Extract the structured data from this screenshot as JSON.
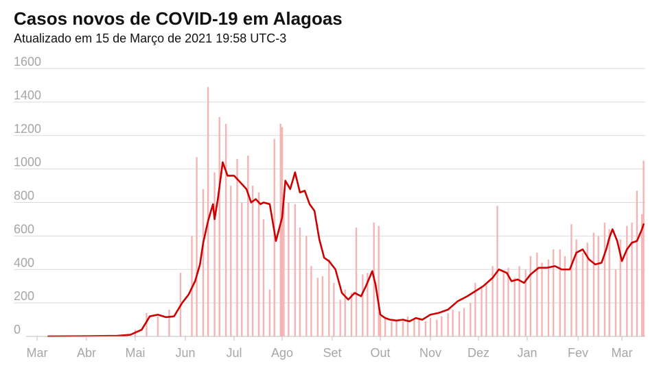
{
  "chart_data": {
    "type": "bar",
    "title": "Casos novos de COVID-19 em Alagoas",
    "subtitle": "Atualizado em 15 de Março de 2021 19:58 UTC-3",
    "xlabel": "",
    "ylabel": "",
    "ylim": [
      0,
      1600
    ],
    "y_ticks": [
      0,
      200,
      400,
      600,
      800,
      1000,
      1200,
      1400,
      1600
    ],
    "x_ticks": [
      "Mar",
      "Abr",
      "Mai",
      "Jun",
      "Jul",
      "Ago",
      "Set",
      "Out",
      "Nov",
      "Dez",
      "Jan",
      "Fev",
      "Mar"
    ],
    "grid": true,
    "bar_color": "#f4b4b4",
    "line_color": "#cc0000",
    "series": [
      {
        "type": "bar",
        "x": [
          "2020-03-08",
          "2020-03-15",
          "2020-03-22",
          "2020-03-29",
          "2020-04-05",
          "2020-04-12",
          "2020-04-19",
          "2020-04-26",
          "2020-05-01",
          "2020-05-08",
          "2020-05-15",
          "2020-05-22",
          "2020-05-29",
          "2020-06-05",
          "2020-06-08",
          "2020-06-12",
          "2020-06-15",
          "2020-06-19",
          "2020-06-22",
          "2020-06-26",
          "2020-06-29",
          "2020-07-03",
          "2020-07-06",
          "2020-07-10",
          "2020-07-13",
          "2020-07-17",
          "2020-07-20",
          "2020-07-24",
          "2020-07-27",
          "2020-07-31",
          "2020-08-01",
          "2020-08-02",
          "2020-08-05",
          "2020-08-09",
          "2020-08-12",
          "2020-08-16",
          "2020-08-19",
          "2020-08-23",
          "2020-08-26",
          "2020-08-30",
          "2020-09-02",
          "2020-09-06",
          "2020-09-09",
          "2020-09-13",
          "2020-09-16",
          "2020-09-20",
          "2020-09-23",
          "2020-09-27",
          "2020-09-30",
          "2020-10-01",
          "2020-10-04",
          "2020-10-08",
          "2020-10-11",
          "2020-10-15",
          "2020-10-18",
          "2020-10-22",
          "2020-10-25",
          "2020-10-29",
          "2020-11-01",
          "2020-11-05",
          "2020-11-08",
          "2020-11-12",
          "2020-11-15",
          "2020-11-19",
          "2020-11-22",
          "2020-11-26",
          "2020-11-29",
          "2020-12-03",
          "2020-12-06",
          "2020-12-10",
          "2020-12-13",
          "2020-12-17",
          "2020-12-20",
          "2020-12-24",
          "2020-12-27",
          "2020-12-31",
          "2021-01-03",
          "2021-01-07",
          "2021-01-10",
          "2021-01-14",
          "2021-01-17",
          "2021-01-21",
          "2021-01-24",
          "2021-01-28",
          "2021-01-31",
          "2021-02-04",
          "2021-02-07",
          "2021-02-11",
          "2021-02-14",
          "2021-02-18",
          "2021-02-21",
          "2021-02-25",
          "2021-02-28",
          "2021-03-04",
          "2021-03-07",
          "2021-03-10",
          "2021-03-13",
          "2021-03-14"
        ],
        "values": [
          1,
          2,
          3,
          4,
          5,
          6,
          8,
          10,
          40,
          140,
          120,
          160,
          380,
          600,
          1070,
          880,
          1490,
          980,
          1310,
          1270,
          900,
          1060,
          800,
          1080,
          900,
          860,
          700,
          280,
          1180,
          1270,
          1250,
          850,
          800,
          790,
          650,
          600,
          420,
          350,
          360,
          460,
          320,
          220,
          280,
          260,
          650,
          370,
          380,
          680,
          660,
          120,
          110,
          90,
          100,
          90,
          120,
          100,
          100,
          90,
          110,
          100,
          120,
          140,
          160,
          150,
          170,
          200,
          320,
          300,
          310,
          420,
          780,
          380,
          410,
          350,
          420,
          400,
          480,
          500,
          440,
          460,
          520,
          520,
          480,
          670,
          580,
          500,
          560,
          620,
          600,
          680,
          640,
          400,
          580,
          660,
          680,
          870,
          730,
          1050
        ]
      },
      {
        "type": "line",
        "name": "",
        "x": [
          "2020-03-08",
          "2020-04-01",
          "2020-04-20",
          "2020-04-28",
          "2020-05-05",
          "2020-05-10",
          "2020-05-15",
          "2020-05-20",
          "2020-05-25",
          "2020-05-30",
          "2020-06-03",
          "2020-06-07",
          "2020-06-10",
          "2020-06-12",
          "2020-06-15",
          "2020-06-18",
          "2020-06-19",
          "2020-06-21",
          "2020-06-24",
          "2020-06-27",
          "2020-07-01",
          "2020-07-05",
          "2020-07-09",
          "2020-07-12",
          "2020-07-15",
          "2020-07-18",
          "2020-07-20",
          "2020-07-24",
          "2020-07-28",
          "2020-08-01",
          "2020-08-03",
          "2020-08-06",
          "2020-08-09",
          "2020-08-12",
          "2020-08-15",
          "2020-08-18",
          "2020-08-21",
          "2020-08-24",
          "2020-08-27",
          "2020-08-30",
          "2020-09-03",
          "2020-09-07",
          "2020-09-11",
          "2020-09-15",
          "2020-09-19",
          "2020-09-22",
          "2020-09-26",
          "2020-09-28",
          "2020-10-01",
          "2020-10-04",
          "2020-10-07",
          "2020-10-11",
          "2020-10-15",
          "2020-10-19",
          "2020-10-23",
          "2020-10-27",
          "2020-11-01",
          "2020-11-06",
          "2020-11-12",
          "2020-11-18",
          "2020-11-24",
          "2020-11-29",
          "2020-12-04",
          "2020-12-10",
          "2020-12-14",
          "2020-12-19",
          "2020-12-22",
          "2020-12-26",
          "2020-12-30",
          "2021-01-03",
          "2021-01-08",
          "2021-01-13",
          "2021-01-18",
          "2021-01-22",
          "2021-01-27",
          "2021-01-31",
          "2021-02-04",
          "2021-02-08",
          "2021-02-12",
          "2021-02-16",
          "2021-02-19",
          "2021-02-21",
          "2021-02-23",
          "2021-02-26",
          "2021-03-01",
          "2021-03-04",
          "2021-03-07",
          "2021-03-10",
          "2021-03-13",
          "2021-03-14"
        ],
        "values": [
          1,
          2,
          4,
          10,
          40,
          120,
          130,
          115,
          120,
          200,
          250,
          330,
          430,
          560,
          690,
          790,
          700,
          820,
          1040,
          960,
          960,
          920,
          880,
          800,
          820,
          790,
          800,
          790,
          570,
          710,
          930,
          880,
          980,
          860,
          870,
          790,
          750,
          580,
          470,
          450,
          400,
          260,
          220,
          260,
          240,
          300,
          390,
          310,
          130,
          110,
          100,
          95,
          100,
          90,
          110,
          100,
          130,
          140,
          160,
          210,
          240,
          270,
          300,
          350,
          400,
          380,
          330,
          340,
          320,
          370,
          410,
          410,
          420,
          400,
          400,
          500,
          520,
          460,
          430,
          440,
          520,
          590,
          640,
          570,
          450,
          520,
          560,
          570,
          640,
          670
        ]
      }
    ]
  }
}
